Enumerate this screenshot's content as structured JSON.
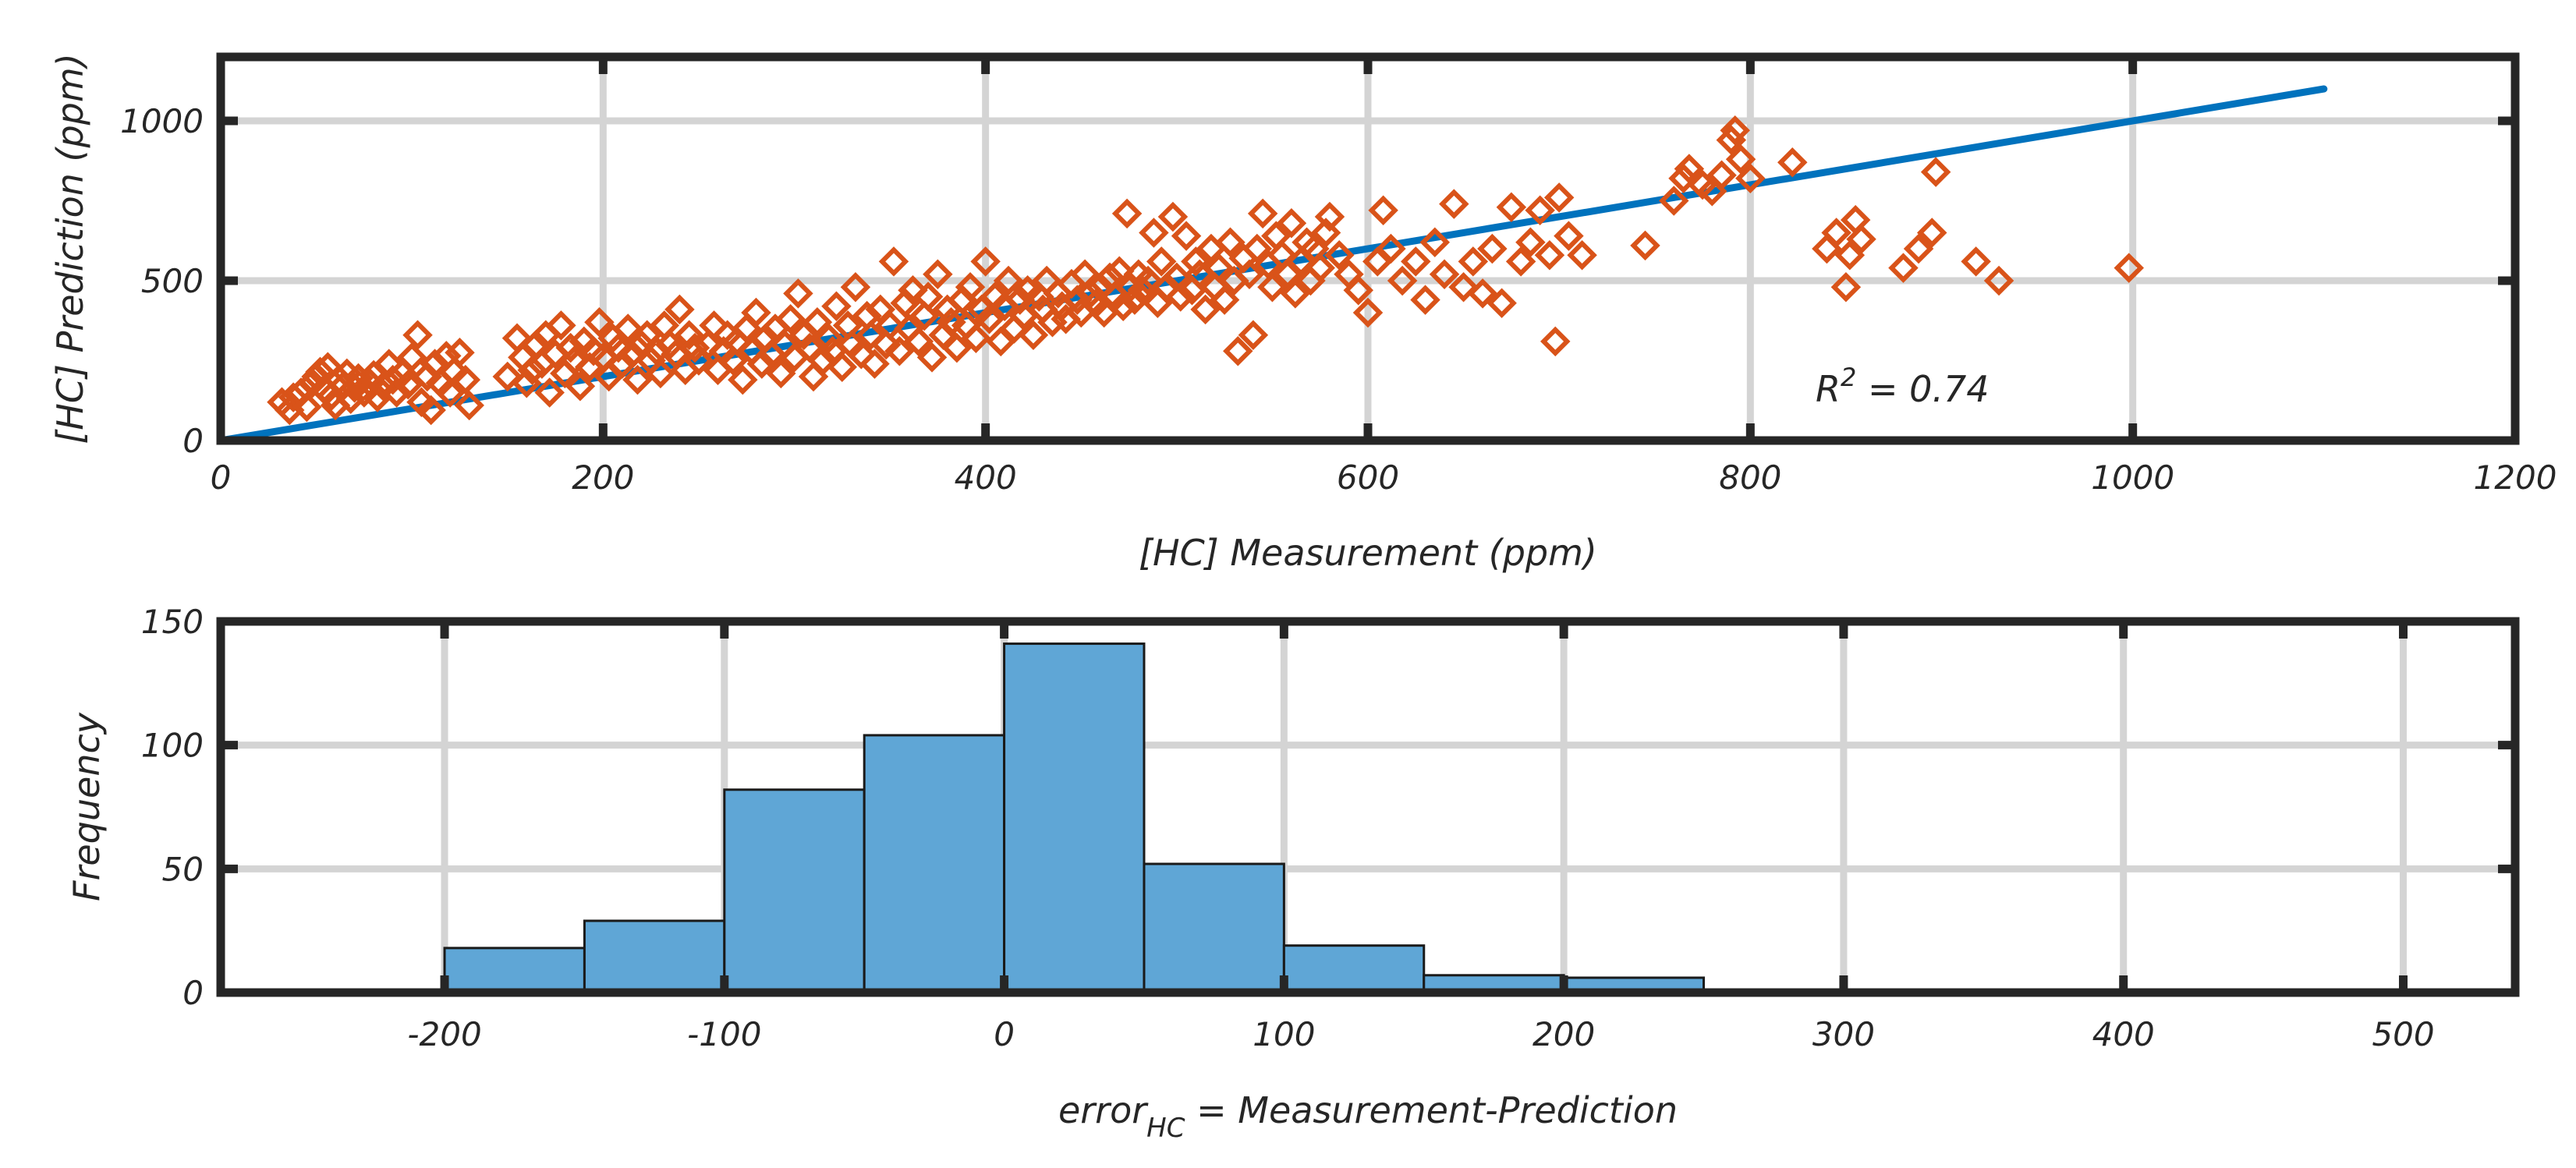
{
  "chart_data": [
    {
      "type": "scatter",
      "title": "",
      "xlabel": "[HC] Measurement (ppm)",
      "ylabel": "[HC] Prediction (ppm)",
      "xlim": [
        0,
        1200
      ],
      "ylim": [
        0,
        1200
      ],
      "xticks": [
        0,
        200,
        400,
        600,
        800,
        1000,
        1200
      ],
      "yticks": [
        0,
        500,
        1000
      ],
      "grid": true,
      "annotation": {
        "prefix": "R",
        "superscript": "2",
        "suffix": " = 0.74"
      },
      "fit_line": {
        "x": [
          0,
          1100
        ],
        "y": [
          0,
          1100
        ],
        "color": "#0072bd"
      },
      "marker_color": "#d95319",
      "marker": "diamond",
      "series": [
        {
          "name": "HC",
          "points": [
            [
              32,
              120
            ],
            [
              36,
              95
            ],
            [
              38,
              135
            ],
            [
              42,
              150
            ],
            [
              45,
              105
            ],
            [
              48,
              180
            ],
            [
              50,
              200
            ],
            [
              52,
              215
            ],
            [
              54,
              160
            ],
            [
              56,
              230
            ],
            [
              58,
              140
            ],
            [
              60,
              110
            ],
            [
              62,
              190
            ],
            [
              64,
              170
            ],
            [
              66,
              210
            ],
            [
              68,
              130
            ],
            [
              70,
              165
            ],
            [
              72,
              195
            ],
            [
              75,
              150
            ],
            [
              78,
              180
            ],
            [
              80,
              205
            ],
            [
              82,
              135
            ],
            [
              85,
              170
            ],
            [
              88,
              240
            ],
            [
              90,
              190
            ],
            [
              92,
              150
            ],
            [
              95,
              210
            ],
            [
              98,
              175
            ],
            [
              100,
              260
            ],
            [
              103,
              330
            ],
            [
              105,
              120
            ],
            [
              108,
              200
            ],
            [
              110,
              95
            ],
            [
              112,
              240
            ],
            [
              115,
              180
            ],
            [
              118,
              265
            ],
            [
              120,
              150
            ],
            [
              122,
              215
            ],
            [
              125,
              275
            ],
            [
              128,
              190
            ],
            [
              130,
              110
            ],
            [
              150,
              200
            ],
            [
              155,
              320
            ],
            [
              158,
              260
            ],
            [
              160,
              180
            ],
            [
              163,
              220
            ],
            [
              165,
              300
            ],
            [
              168,
              240
            ],
            [
              170,
              330
            ],
            [
              172,
              150
            ],
            [
              175,
              270
            ],
            [
              178,
              360
            ],
            [
              180,
              210
            ],
            [
              183,
              290
            ],
            [
              185,
              250
            ],
            [
              188,
              170
            ],
            [
              190,
              310
            ],
            [
              193,
              230
            ],
            [
              195,
              280
            ],
            [
              198,
              370
            ],
            [
              200,
              260
            ],
            [
              203,
              200
            ],
            [
              205,
              320
            ],
            [
              208,
              290
            ],
            [
              210,
              240
            ],
            [
              213,
              350
            ],
            [
              215,
              270
            ],
            [
              218,
              190
            ],
            [
              220,
              300
            ],
            [
              223,
              330
            ],
            [
              225,
              250
            ],
            [
              228,
              280
            ],
            [
              230,
              210
            ],
            [
              232,
              360
            ],
            [
              235,
              300
            ],
            [
              238,
              270
            ],
            [
              240,
              410
            ],
            [
              243,
              220
            ],
            [
              245,
              330
            ],
            [
              248,
              290
            ],
            [
              250,
              250
            ],
            [
              255,
              300
            ],
            [
              258,
              360
            ],
            [
              260,
              220
            ],
            [
              263,
              280
            ],
            [
              265,
              330
            ],
            [
              268,
              250
            ],
            [
              270,
              310
            ],
            [
              273,
              190
            ],
            [
              275,
              350
            ],
            [
              278,
              280
            ],
            [
              280,
              400
            ],
            [
              283,
              240
            ],
            [
              285,
              320
            ],
            [
              288,
              270
            ],
            [
              290,
              350
            ],
            [
              293,
              210
            ],
            [
              295,
              300
            ],
            [
              298,
              380
            ],
            [
              300,
              260
            ],
            [
              302,
              460
            ],
            [
              305,
              330
            ],
            [
              308,
              290
            ],
            [
              310,
              200
            ],
            [
              312,
              370
            ],
            [
              315,
              250
            ],
            [
              318,
              320
            ],
            [
              320,
              280
            ],
            [
              322,
              420
            ],
            [
              325,
              230
            ],
            [
              328,
              360
            ],
            [
              330,
              300
            ],
            [
              332,
              480
            ],
            [
              335,
              270
            ],
            [
              338,
              390
            ],
            [
              340,
              330
            ],
            [
              342,
              240
            ],
            [
              345,
              410
            ],
            [
              348,
              300
            ],
            [
              350,
              360
            ],
            [
              352,
              560
            ],
            [
              355,
              280
            ],
            [
              358,
              430
            ],
            [
              360,
              350
            ],
            [
              362,
              470
            ],
            [
              365,
              310
            ],
            [
              368,
              390
            ],
            [
              370,
              450
            ],
            [
              372,
              260
            ],
            [
              375,
              520
            ],
            [
              378,
              330
            ],
            [
              380,
              410
            ],
            [
              382,
              370
            ],
            [
              385,
              290
            ],
            [
              388,
              440
            ],
            [
              390,
              360
            ],
            [
              392,
              480
            ],
            [
              395,
              320
            ],
            [
              398,
              410
            ],
            [
              400,
              560
            ],
            [
              402,
              380
            ],
            [
              405,
              450
            ],
            [
              408,
              310
            ],
            [
              410,
              420
            ],
            [
              412,
              500
            ],
            [
              415,
              350
            ],
            [
              418,
              440
            ],
            [
              420,
              390
            ],
            [
              422,
              470
            ],
            [
              425,
              330
            ],
            [
              428,
              450
            ],
            [
              430,
              410
            ],
            [
              432,
              500
            ],
            [
              435,
              370
            ],
            [
              438,
              460
            ],
            [
              440,
              420
            ],
            [
              442,
              380
            ],
            [
              445,
              490
            ],
            [
              448,
              440
            ],
            [
              450,
              400
            ],
            [
              452,
              520
            ],
            [
              455,
              460
            ],
            [
              458,
              430
            ],
            [
              460,
              480
            ],
            [
              462,
              400
            ],
            [
              465,
              510
            ],
            [
              468,
              450
            ],
            [
              470,
              530
            ],
            [
              472,
              420
            ],
            [
              474,
              710
            ],
            [
              476,
              480
            ],
            [
              478,
              440
            ],
            [
              480,
              520
            ],
            [
              482,
              470
            ],
            [
              485,
              500
            ],
            [
              488,
              650
            ],
            [
              490,
              430
            ],
            [
              492,
              560
            ],
            [
              495,
              480
            ],
            [
              498,
              700
            ],
            [
              500,
              510
            ],
            [
              502,
              450
            ],
            [
              505,
              640
            ],
            [
              508,
              470
            ],
            [
              510,
              560
            ],
            [
              512,
              520
            ],
            [
              515,
              410
            ],
            [
              518,
              600
            ],
            [
              520,
              480
            ],
            [
              522,
              540
            ],
            [
              525,
              440
            ],
            [
              528,
              620
            ],
            [
              530,
              500
            ],
            [
              532,
              280
            ],
            [
              535,
              570
            ],
            [
              538,
              520
            ],
            [
              540,
              330
            ],
            [
              542,
              600
            ],
            [
              545,
              710
            ],
            [
              548,
              550
            ],
            [
              550,
              480
            ],
            [
              552,
              640
            ],
            [
              555,
              580
            ],
            [
              558,
              520
            ],
            [
              560,
              680
            ],
            [
              562,
              460
            ],
            [
              565,
              560
            ],
            [
              568,
              620
            ],
            [
              570,
              500
            ],
            [
              572,
              600
            ],
            [
              575,
              540
            ],
            [
              578,
              650
            ],
            [
              580,
              700
            ],
            [
              585,
              580
            ],
            [
              590,
              520
            ],
            [
              595,
              470
            ],
            [
              600,
              400
            ],
            [
              605,
              560
            ],
            [
              608,
              720
            ],
            [
              612,
              600
            ],
            [
              618,
              500
            ],
            [
              625,
              560
            ],
            [
              630,
              440
            ],
            [
              635,
              620
            ],
            [
              640,
              520
            ],
            [
              645,
              740
            ],
            [
              650,
              480
            ],
            [
              655,
              560
            ],
            [
              660,
              460
            ],
            [
              665,
              600
            ],
            [
              670,
              430
            ],
            [
              675,
              730
            ],
            [
              680,
              560
            ],
            [
              685,
              620
            ],
            [
              690,
              720
            ],
            [
              695,
              580
            ],
            [
              698,
              310
            ],
            [
              700,
              760
            ],
            [
              705,
              640
            ],
            [
              712,
              580
            ],
            [
              745,
              610
            ],
            [
              760,
              750
            ],
            [
              765,
              820
            ],
            [
              768,
              850
            ],
            [
              775,
              800
            ],
            [
              780,
              780
            ],
            [
              785,
              830
            ],
            [
              790,
              940
            ],
            [
              792,
              970
            ],
            [
              795,
              880
            ],
            [
              800,
              820
            ],
            [
              822,
              870
            ],
            [
              840,
              600
            ],
            [
              845,
              650
            ],
            [
              850,
              480
            ],
            [
              852,
              580
            ],
            [
              855,
              690
            ],
            [
              858,
              630
            ],
            [
              880,
              540
            ],
            [
              888,
              600
            ],
            [
              895,
              650
            ],
            [
              897,
              840
            ],
            [
              918,
              560
            ],
            [
              930,
              500
            ],
            [
              998,
              540
            ]
          ]
        }
      ]
    },
    {
      "type": "bar",
      "title": "",
      "xlabel_main": "error",
      "xlabel_subscript": "HC",
      "xlabel_rest": " = Measurement-Prediction",
      "ylabel": "Frequency",
      "xlim": [
        -280,
        540
      ],
      "ylim": [
        0,
        150
      ],
      "xticks": [
        -200,
        -100,
        0,
        100,
        200,
        300,
        400,
        500
      ],
      "yticks": [
        0,
        50,
        100,
        150
      ],
      "grid": true,
      "bar_color": "#5fa6d6",
      "bin_edges": [
        -250,
        -200,
        -150,
        -100,
        -50,
        0,
        50,
        100,
        150,
        200,
        250
      ],
      "values": [
        1,
        18,
        29,
        82,
        104,
        141,
        52,
        19,
        7,
        6
      ]
    }
  ]
}
